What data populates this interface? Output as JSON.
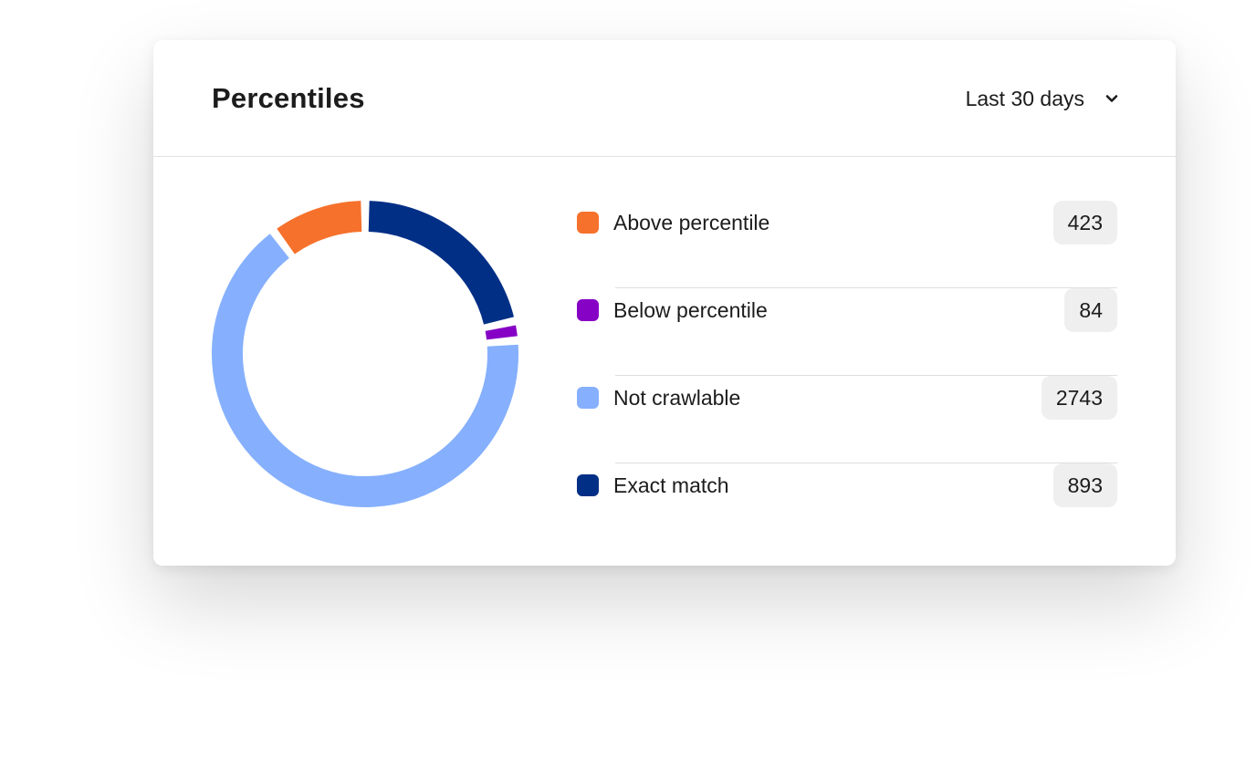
{
  "card": {
    "title": "Percentiles",
    "range_selector": {
      "value": "Last 30 days",
      "icon": "chevron-down-icon"
    }
  },
  "chart_data": {
    "type": "pie",
    "variant": "donut",
    "categories": [
      "Above percentile",
      "Below percentile",
      "Not crawlable",
      "Exact match"
    ],
    "values": [
      423,
      84,
      2743,
      893
    ],
    "colors": [
      "#f6712b",
      "#8602c5",
      "#86b0fd",
      "#022f86"
    ]
  },
  "legend": [
    {
      "label": "Above percentile",
      "count": "423",
      "color": "#f6712b"
    },
    {
      "label": "Below percentile",
      "count": "84",
      "color": "#8602c5"
    },
    {
      "label": "Not crawlable",
      "count": "2743",
      "color": "#86b0fd"
    },
    {
      "label": "Exact match",
      "count": "893",
      "color": "#022f86"
    }
  ]
}
